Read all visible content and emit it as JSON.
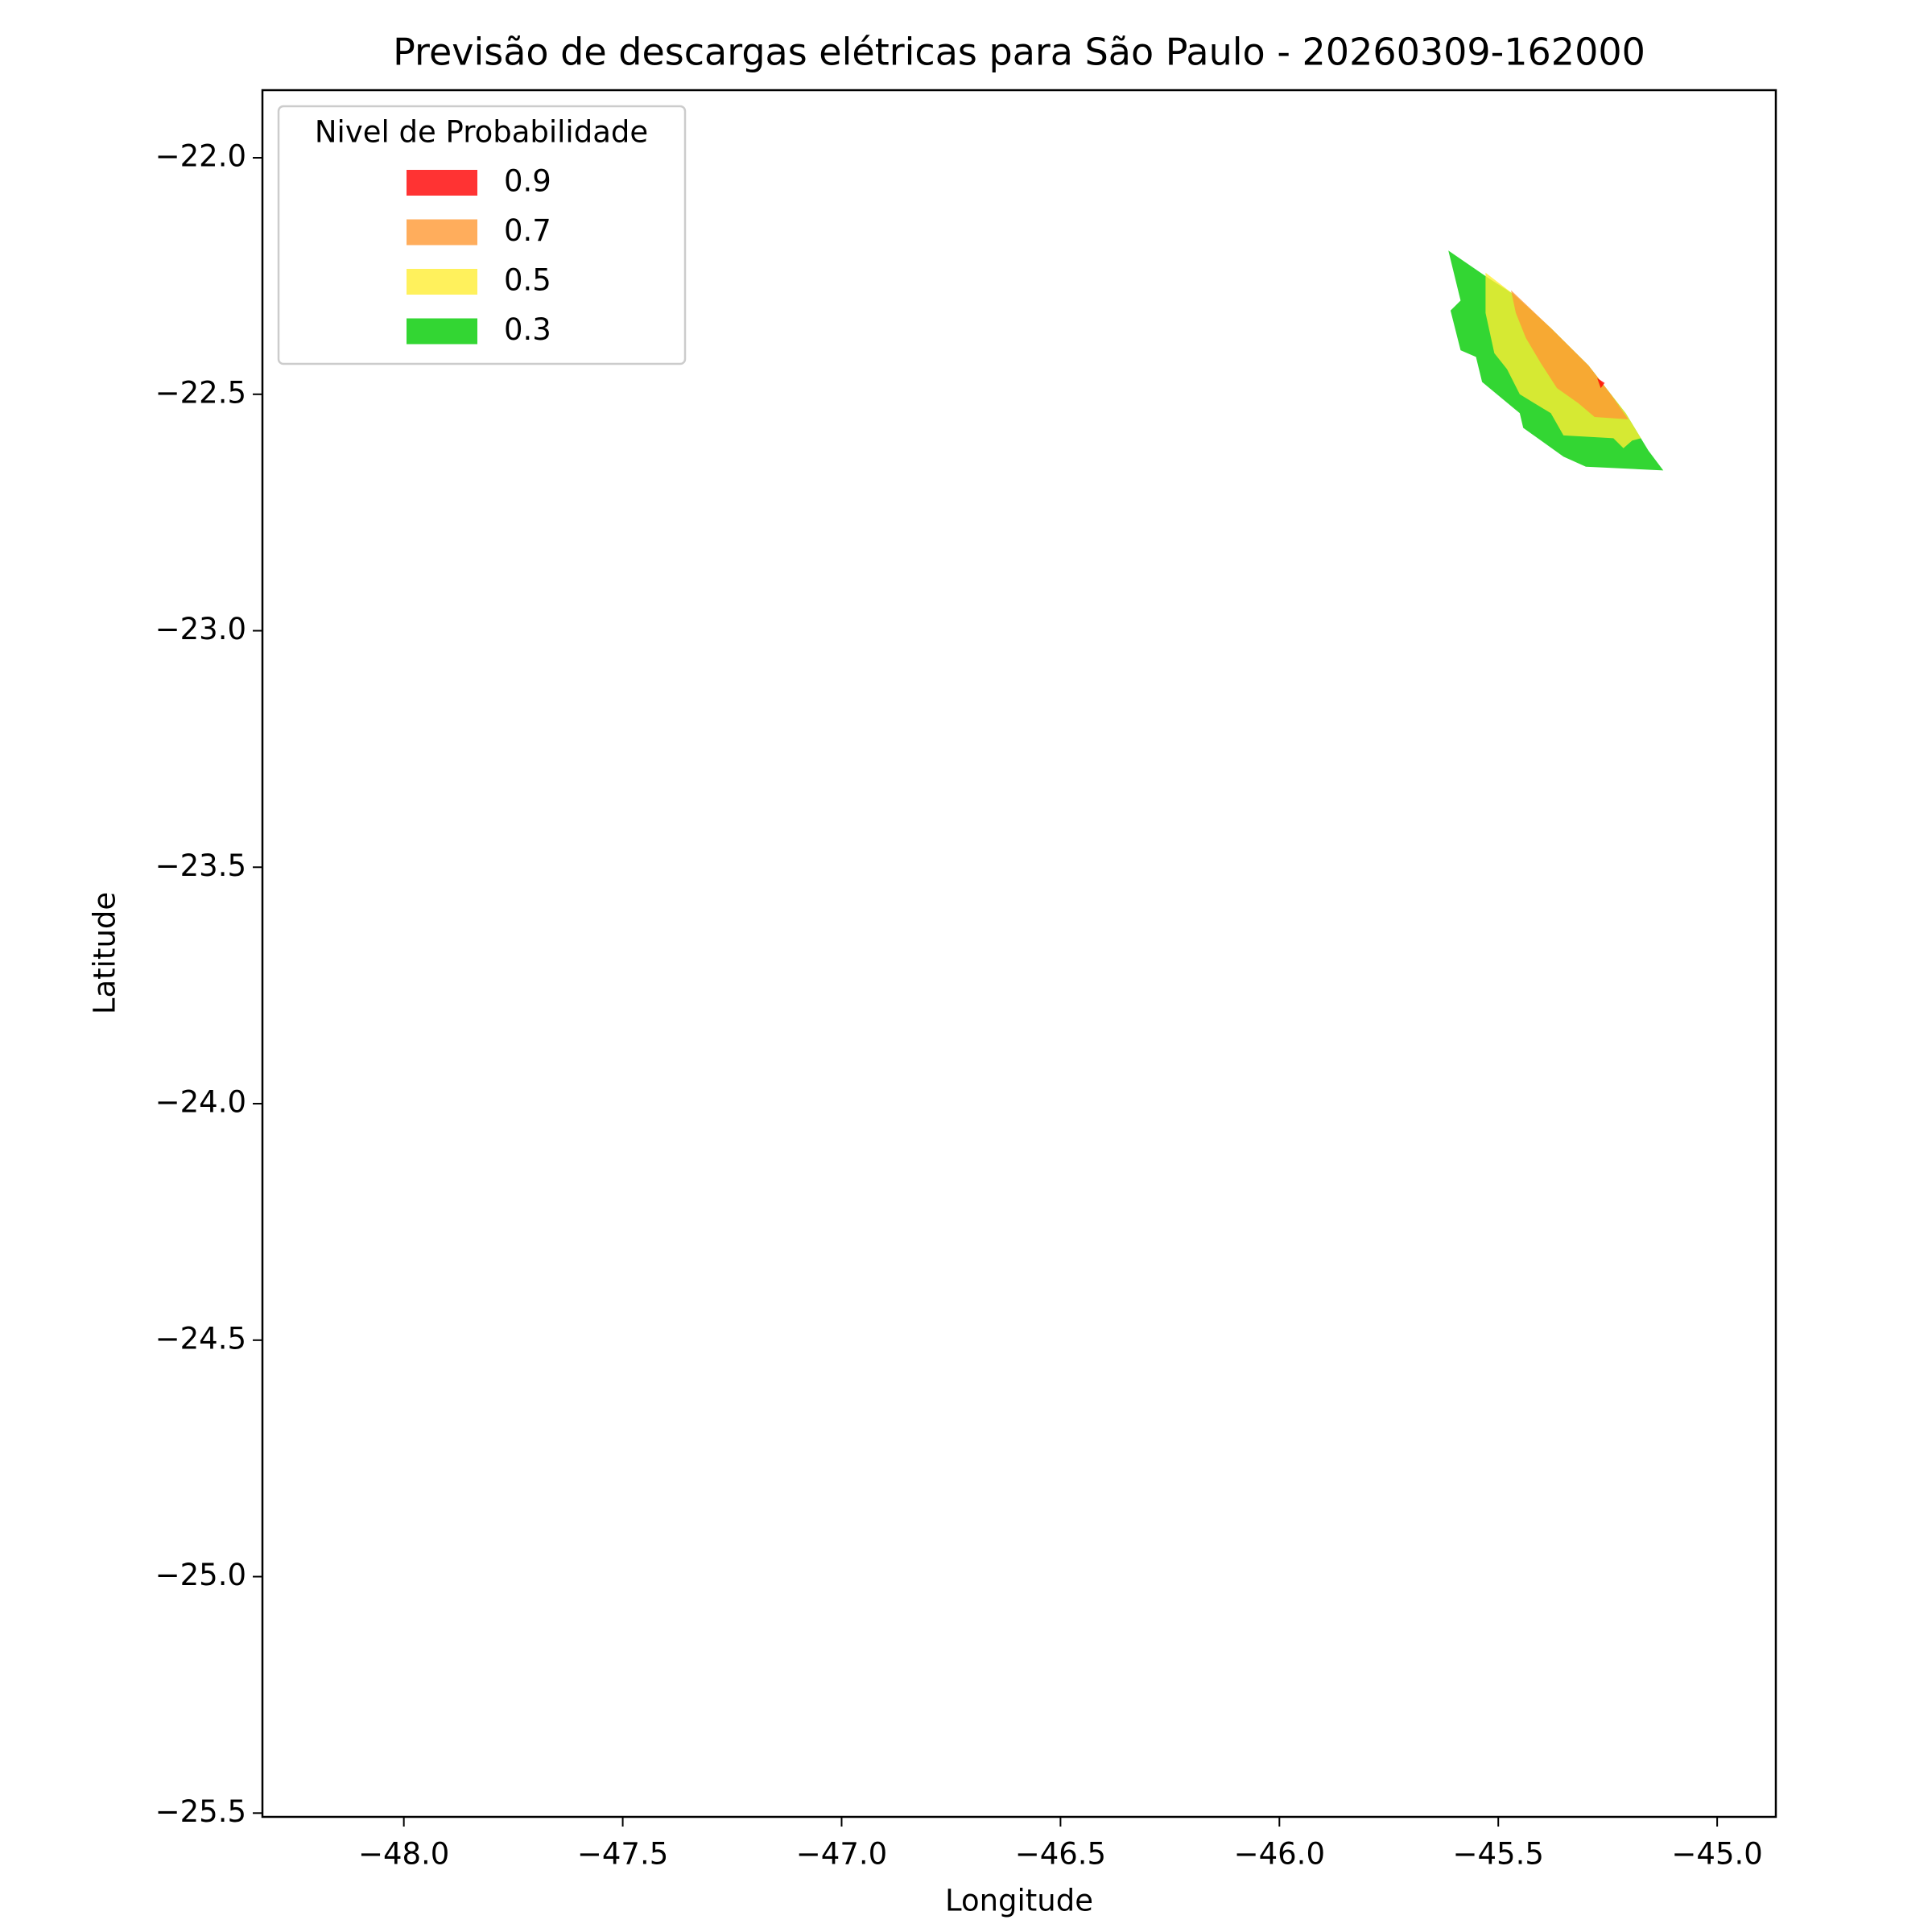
{
  "chart_data": {
    "type": "contourf",
    "title": "Previsão de descargas elétricas para São Paulo - 20260309-162000",
    "xlabel": "Longitude",
    "ylabel": "Latitude",
    "legend_title": "Nivel de Probabilidade",
    "legend": "upper left",
    "alpha": 0.8,
    "xlim": [
      -48.323,
      -44.866
    ],
    "ylim": [
      -25.508,
      -21.857
    ],
    "xticks": [
      {
        "value": -48,
        "label": "−48.0"
      },
      {
        "value": -47.5,
        "label": "−47.5"
      },
      {
        "value": -47,
        "label": "−47.0"
      },
      {
        "value": -46.5,
        "label": "−46.5"
      },
      {
        "value": -46,
        "label": "−46.0"
      },
      {
        "value": -45.5,
        "label": "−45.5"
      },
      {
        "value": -45,
        "label": "−45.0"
      }
    ],
    "yticks": [
      {
        "value": -22,
        "label": "−22.0"
      },
      {
        "value": -22.5,
        "label": "−22.5"
      },
      {
        "value": -23,
        "label": "−23.0"
      },
      {
        "value": -23.5,
        "label": "−23.5"
      },
      {
        "value": -24,
        "label": "−24.0"
      },
      {
        "value": -24.5,
        "label": "−24.5"
      },
      {
        "value": -25,
        "label": "−25.0"
      },
      {
        "value": -25.5,
        "label": "−25.5"
      }
    ],
    "series": [
      {
        "name": "0.9",
        "color": "#ff0000",
        "x": [
          -45.274,
          -45.257,
          -45.266
        ],
        "y": [
          -22.466,
          -22.476,
          -22.487
        ]
      },
      {
        "name": "0.7",
        "color": "#ff9933",
        "x": [
          -45.471,
          -45.38,
          -45.294,
          -45.243,
          -45.203,
          -45.28,
          -45.317,
          -45.366,
          -45.403,
          -45.437,
          -45.46
        ],
        "y": [
          -22.28,
          -22.36,
          -22.439,
          -22.5,
          -22.553,
          -22.548,
          -22.519,
          -22.487,
          -22.434,
          -22.381,
          -22.328
        ]
      },
      {
        "name": "0.5",
        "color": "#ffee33",
        "x": [
          -45.529,
          -45.466,
          -45.38,
          -45.294,
          -45.209,
          -45.174,
          -45.194,
          -45.214,
          -45.237,
          -45.351,
          -45.38,
          -45.451,
          -45.48,
          -45.509,
          -45.529
        ],
        "y": [
          -22.243,
          -22.288,
          -22.36,
          -22.439,
          -22.54,
          -22.593,
          -22.598,
          -22.614,
          -22.593,
          -22.587,
          -22.54,
          -22.5,
          -22.447,
          -22.413,
          -22.328
        ]
      },
      {
        "name": "0.3",
        "color": "#00cc00",
        "x": [
          -45.614,
          -45.523,
          -45.466,
          -45.38,
          -45.294,
          -45.209,
          -45.157,
          -45.123,
          -45.3,
          -45.351,
          -45.443,
          -45.451,
          -45.537,
          -45.551,
          -45.586,
          -45.609,
          -45.586
        ],
        "y": [
          -22.196,
          -22.254,
          -22.288,
          -22.36,
          -22.439,
          -22.54,
          -22.619,
          -22.661,
          -22.653,
          -22.632,
          -22.571,
          -22.54,
          -22.474,
          -22.421,
          -22.407,
          -22.323,
          -22.302
        ]
      }
    ]
  }
}
